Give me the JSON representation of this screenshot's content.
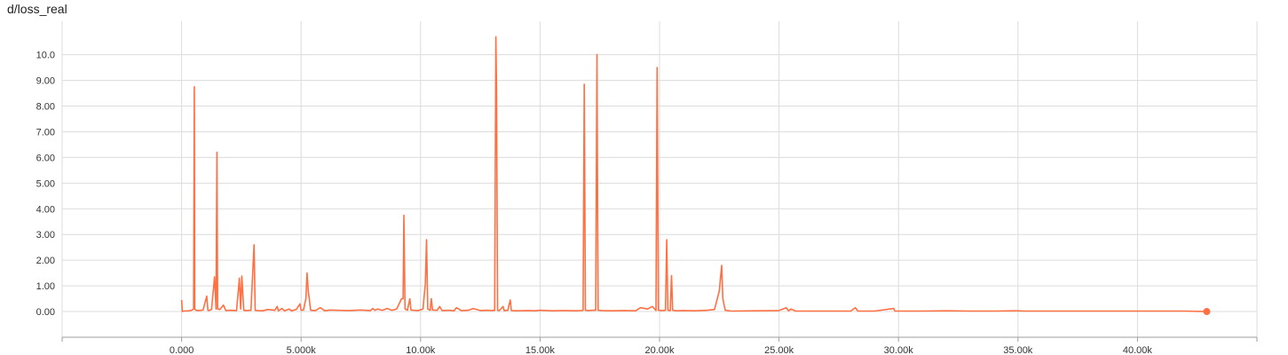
{
  "chart_data": {
    "type": "line",
    "title": "d/loss_real",
    "xlabel": "",
    "ylabel": "",
    "xlim": [
      -5000,
      45000
    ],
    "ylim": [
      -1.0,
      11.3
    ],
    "grid": true,
    "x_ticks": [
      0,
      5000,
      10000,
      15000,
      20000,
      25000,
      30000,
      35000,
      40000
    ],
    "x_tick_labels": [
      "0.000",
      "5.000k",
      "10.00k",
      "15.00k",
      "20.00k",
      "25.00k",
      "30.00k",
      "35.00k",
      "40.00k"
    ],
    "y_ticks": [
      0,
      1,
      2,
      3,
      4,
      5,
      6,
      7,
      8,
      9,
      10
    ],
    "y_tick_labels": [
      "0.00",
      "1.00",
      "2.00",
      "3.00",
      "4.00",
      "5.00",
      "6.00",
      "7.00",
      "8.00",
      "9.00",
      "10.0"
    ],
    "series": [
      {
        "color": "#ff7043",
        "x": [
          0,
          30,
          60,
          300,
          420,
          500,
          530,
          550,
          600,
          700,
          900,
          1050,
          1100,
          1150,
          1250,
          1380,
          1440,
          1480,
          1510,
          1600,
          1750,
          1850,
          2000,
          2300,
          2420,
          2470,
          2520,
          2600,
          2700,
          2900,
          3030,
          3080,
          3200,
          3400,
          3600,
          3900,
          4000,
          4050,
          4200,
          4300,
          4500,
          4600,
          4800,
          4950,
          5000,
          5100,
          5200,
          5250,
          5300,
          5400,
          5600,
          5800,
          6000,
          6200,
          6500,
          7000,
          7500,
          7900,
          8000,
          8100,
          8200,
          8400,
          8600,
          8800,
          9000,
          9200,
          9270,
          9300,
          9350,
          9450,
          9550,
          9600,
          9700,
          9900,
          10100,
          10200,
          10250,
          10300,
          10400,
          10450,
          10500,
          10700,
          10800,
          10900,
          11200,
          11400,
          11500,
          11700,
          12000,
          12200,
          12500,
          12800,
          13000,
          13100,
          13150,
          13180,
          13220,
          13300,
          13450,
          13500,
          13650,
          13750,
          13800,
          14000,
          14500,
          14800,
          15000,
          15500,
          16000,
          16500,
          16700,
          16800,
          16850,
          16900,
          17000,
          17200,
          17330,
          17380,
          17430,
          17600,
          18000,
          18500,
          19000,
          19200,
          19500,
          19700,
          19850,
          19900,
          19950,
          20100,
          20250,
          20300,
          20350,
          20450,
          20500,
          20550,
          20700,
          21000,
          21500,
          22000,
          22300,
          22500,
          22600,
          22650,
          22750,
          22900,
          23000,
          24000,
          25000,
          25300,
          25400,
          25500,
          25700,
          26000,
          27000,
          28000,
          28200,
          28300,
          28400,
          29000,
          29800,
          29850,
          29900,
          30500,
          31000,
          32000,
          33000,
          33500,
          34000,
          35000,
          35200,
          36000,
          37000,
          38000,
          39000,
          40000,
          41000,
          42000,
          42900
        ],
        "y": [
          0.45,
          0.0,
          0.02,
          0.03,
          0.05,
          0.1,
          8.75,
          0.1,
          0.05,
          0.04,
          0.06,
          0.6,
          0.05,
          0.04,
          0.08,
          1.35,
          0.1,
          6.2,
          0.1,
          0.08,
          0.25,
          0.04,
          0.05,
          0.04,
          1.3,
          0.1,
          1.38,
          0.05,
          0.04,
          0.05,
          2.6,
          0.05,
          0.04,
          0.03,
          0.08,
          0.05,
          0.2,
          0.03,
          0.12,
          0.03,
          0.1,
          0.03,
          0.08,
          0.3,
          0.05,
          0.06,
          0.5,
          1.5,
          0.8,
          0.05,
          0.04,
          0.15,
          0.03,
          0.06,
          0.05,
          0.04,
          0.06,
          0.04,
          0.12,
          0.05,
          0.1,
          0.05,
          0.12,
          0.05,
          0.1,
          0.5,
          0.5,
          3.75,
          0.1,
          0.05,
          0.5,
          0.06,
          0.05,
          0.04,
          0.1,
          1.1,
          2.8,
          0.1,
          0.05,
          0.5,
          0.06,
          0.05,
          0.2,
          0.04,
          0.05,
          0.03,
          0.15,
          0.04,
          0.05,
          0.12,
          0.04,
          0.05,
          0.04,
          0.05,
          10.7,
          8.5,
          0.05,
          0.04,
          0.2,
          0.04,
          0.05,
          0.45,
          0.04,
          0.03,
          0.04,
          0.03,
          0.05,
          0.03,
          0.04,
          0.03,
          0.04,
          0.05,
          8.85,
          0.05,
          0.04,
          0.05,
          0.05,
          10.0,
          0.05,
          0.04,
          0.03,
          0.04,
          0.03,
          0.15,
          0.1,
          0.2,
          0.04,
          9.5,
          0.05,
          0.04,
          0.05,
          2.8,
          0.05,
          0.04,
          1.4,
          0.05,
          0.03,
          0.04,
          0.03,
          0.05,
          0.08,
          0.8,
          1.8,
          0.5,
          0.05,
          0.03,
          0.02,
          0.03,
          0.04,
          0.15,
          0.03,
          0.1,
          0.02,
          0.02,
          0.02,
          0.02,
          0.15,
          0.02,
          0.02,
          0.02,
          0.12,
          0.02,
          0.02,
          0.02,
          0.02,
          0.03,
          0.02,
          0.02,
          0.02,
          0.03,
          0.02,
          0.02,
          0.02,
          0.02,
          0.02,
          0.02,
          0.02,
          0.02,
          0.0
        ]
      }
    ]
  }
}
